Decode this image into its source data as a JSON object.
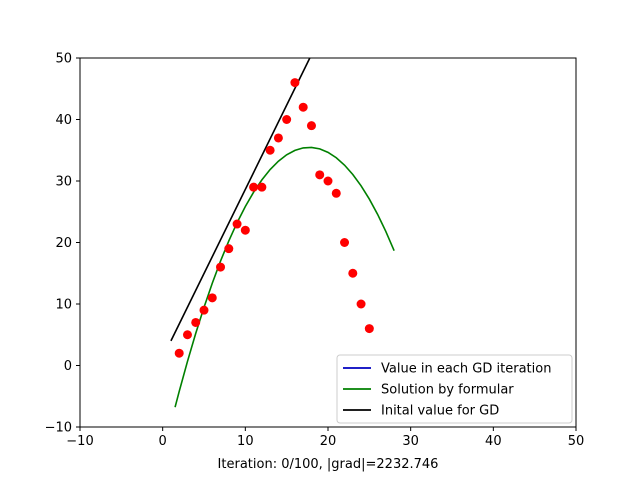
{
  "chart_data": {
    "type": "line",
    "xlabel": "Iteration: 0/100, |grad|=2232.746",
    "xlim": [
      -10,
      50
    ],
    "ylim": [
      -10,
      50
    ],
    "xticks": [
      "−10",
      "0",
      "10",
      "20",
      "30",
      "40",
      "50"
    ],
    "yticks": [
      "−10",
      "0",
      "10",
      "20",
      "30",
      "40",
      "50"
    ],
    "grid": false,
    "legend_position": "lower-right",
    "points": {
      "type": "scatter",
      "color": "#ff0000",
      "x": [
        2,
        3,
        4,
        5,
        6,
        7,
        8,
        9,
        10,
        11,
        12,
        13,
        14,
        15,
        16,
        17,
        18,
        19,
        20,
        21,
        22,
        23,
        24,
        25
      ],
      "y": [
        2,
        5,
        7,
        9,
        11,
        16,
        19,
        23,
        22,
        29,
        29,
        35,
        37,
        40,
        46,
        42,
        39,
        31,
        30,
        28,
        20,
        15,
        10,
        6
      ]
    },
    "series": [
      {
        "name": "Value in each GD iteration",
        "color": "#0000bf",
        "x": [],
        "y": []
      },
      {
        "name": "Solution by formular",
        "color": "#008000",
        "x": [
          1.5,
          2,
          3,
          4,
          5,
          6,
          7,
          8,
          9,
          10,
          11,
          12,
          13,
          14,
          15,
          16,
          17,
          18,
          19,
          20,
          21,
          22,
          23,
          24,
          25,
          26,
          27,
          28
        ],
        "y": [
          -6.78,
          -4.22,
          0.66,
          5.22,
          9.46,
          13.38,
          16.98,
          20.26,
          23.22,
          25.86,
          28.18,
          30.18,
          31.86,
          33.22,
          34.26,
          34.98,
          35.38,
          35.46,
          35.22,
          34.66,
          33.78,
          32.58,
          31.06,
          29.22,
          27.06,
          24.58,
          21.78,
          18.66
        ]
      },
      {
        "name": "Inital value for GD",
        "color": "#000000",
        "x": [
          1,
          17.8
        ],
        "y": [
          4,
          50
        ]
      }
    ]
  }
}
